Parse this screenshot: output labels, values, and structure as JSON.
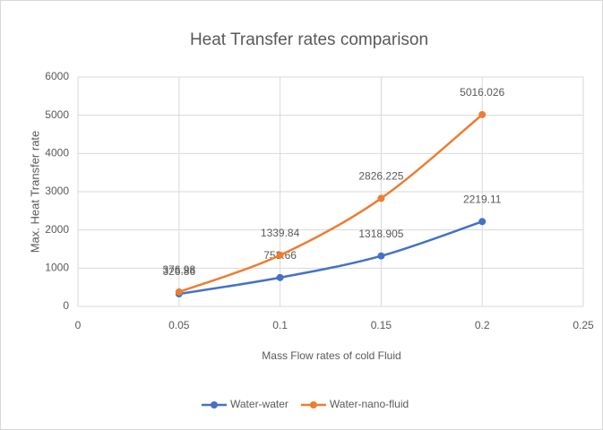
{
  "chart_data": {
    "type": "line",
    "title": "Heat Transfer rates comparison",
    "x_label": "Mass Flow rates of cold Fluid",
    "y_label": "Max. Heat Transfer rate",
    "x": [
      0.05,
      0.1,
      0.15,
      0.2
    ],
    "series": [
      {
        "name": "Water-water",
        "color": "#4472c4",
        "values": [
          326.86,
          753.66,
          1318.905,
          2219.11
        ]
      },
      {
        "name": "Water-nano-fluid",
        "color": "#ed7d31",
        "values": [
          376.98,
          1339.84,
          2826.225,
          5016.026
        ]
      }
    ],
    "xlim": [
      0,
      0.25
    ],
    "xticks": [
      0,
      0.05,
      0.1,
      0.15,
      0.2,
      0.25
    ],
    "ylim": [
      0,
      6000
    ],
    "yticks": [
      0,
      1000,
      2000,
      3000,
      4000,
      5000,
      6000
    ],
    "grid": true,
    "smooth": true,
    "legend": "bottom"
  }
}
